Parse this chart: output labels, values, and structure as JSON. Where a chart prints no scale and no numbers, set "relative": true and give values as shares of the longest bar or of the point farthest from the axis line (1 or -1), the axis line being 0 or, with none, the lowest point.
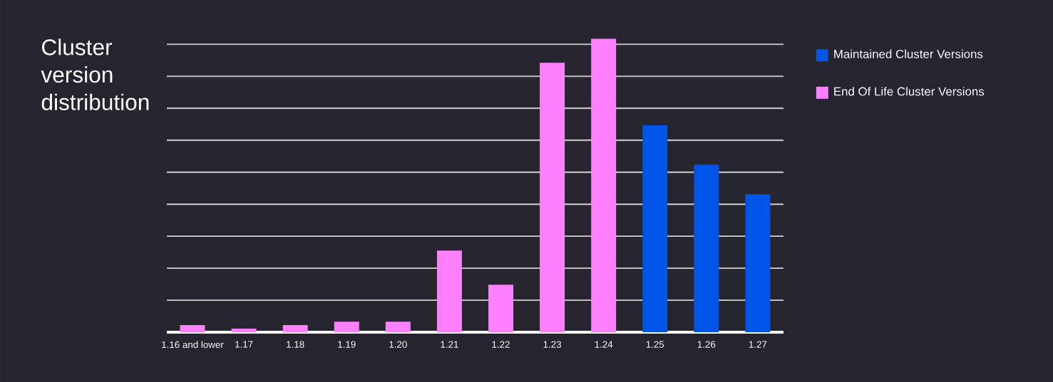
{
  "chart_data": {
    "type": "bar",
    "title": "Cluster version distribution",
    "relative": true,
    "grid": "y",
    "legend": "right",
    "categories": [
      "1.16 and lower",
      "1.17",
      "1.18",
      "1.19",
      "1.20",
      "1.21",
      "1.22",
      "1.23",
      "1.24",
      "1.25",
      "1.26",
      "1.27"
    ],
    "series": [
      {
        "name": "Maintained Cluster Versions",
        "color": "#0055e8",
        "values": [
          null,
          null,
          null,
          null,
          null,
          null,
          null,
          null,
          null,
          0.705,
          0.571,
          0.47
        ]
      },
      {
        "name": "End Of Life Cluster Versions",
        "color": "#ff80ff",
        "values": [
          0.024,
          0.012,
          0.024,
          0.036,
          0.036,
          0.278,
          0.162,
          0.918,
          1,
          null,
          null,
          null
        ]
      }
    ]
  }
}
